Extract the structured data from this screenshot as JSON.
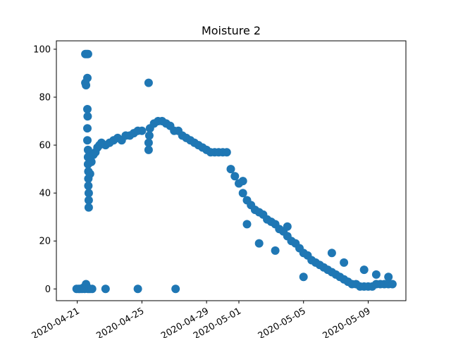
{
  "chart_data": {
    "type": "scatter",
    "title": "Moisture 2",
    "xlabel": "",
    "ylabel": "",
    "x_axis_kind": "date",
    "xlim": [
      "2020-04-19T17:00",
      "2020-05-11T08:00"
    ],
    "ylim": [
      -4.9,
      103.5
    ],
    "x_ticks": [
      "2020-04-21",
      "2020-04-25",
      "2020-04-29",
      "2020-05-01",
      "2020-05-05",
      "2020-05-09"
    ],
    "y_ticks": [
      0,
      20,
      40,
      60,
      80,
      100
    ],
    "x_tick_rotation_deg": 30,
    "grid": false,
    "legend": null,
    "marker_color": "#1f77b4",
    "series": [
      {
        "points": [
          [
            "2020-04-20T23:00",
            0
          ],
          [
            "2020-04-21T02:00",
            0
          ],
          [
            "2020-04-21T04:00",
            0
          ],
          [
            "2020-04-21T07:00",
            0
          ],
          [
            "2020-04-21T09:00",
            0.5
          ],
          [
            "2020-04-21T11:00",
            0
          ],
          [
            "2020-04-21T13:00",
            2
          ],
          [
            "2020-04-21T14:00",
            1
          ],
          [
            "2020-04-21T16:00",
            0
          ],
          [
            "2020-04-21T19:00",
            0
          ],
          [
            "2020-04-21T22:00",
            0
          ],
          [
            "2020-04-21T12:00",
            98
          ],
          [
            "2020-04-21T14:00",
            98
          ],
          [
            "2020-04-21T16:00",
            98
          ],
          [
            "2020-04-21T12:00",
            86
          ],
          [
            "2020-04-21T13:00",
            85
          ],
          [
            "2020-04-21T15:00",
            88
          ],
          [
            "2020-04-21T15:00",
            75
          ],
          [
            "2020-04-21T15:30",
            72
          ],
          [
            "2020-04-21T15:00",
            67
          ],
          [
            "2020-04-21T15:00",
            62
          ],
          [
            "2020-04-21T16:00",
            58
          ],
          [
            "2020-04-21T16:00",
            55
          ],
          [
            "2020-04-21T16:00",
            52
          ],
          [
            "2020-04-21T16:30",
            49
          ],
          [
            "2020-04-21T16:30",
            46
          ],
          [
            "2020-04-21T16:30",
            43
          ],
          [
            "2020-04-21T17:00",
            40
          ],
          [
            "2020-04-21T17:00",
            37
          ],
          [
            "2020-04-21T17:00",
            34
          ],
          [
            "2020-04-21T19:00",
            48
          ],
          [
            "2020-04-21T21:00",
            53
          ],
          [
            "2020-04-22T00:00",
            56
          ],
          [
            "2020-04-22T03:00",
            57
          ],
          [
            "2020-04-22T06:00",
            59
          ],
          [
            "2020-04-22T09:00",
            60
          ],
          [
            "2020-04-22T12:00",
            61
          ],
          [
            "2020-04-22T18:00",
            60
          ],
          [
            "2020-04-23T00:00",
            61
          ],
          [
            "2020-04-23T06:00",
            62
          ],
          [
            "2020-04-23T12:00",
            63
          ],
          [
            "2020-04-23T18:00",
            62
          ],
          [
            "2020-04-24T00:00",
            64
          ],
          [
            "2020-04-24T06:00",
            64
          ],
          [
            "2020-04-24T12:00",
            65
          ],
          [
            "2020-04-24T18:00",
            66
          ],
          [
            "2020-04-25T00:00",
            66
          ],
          [
            "2020-04-22T18:00",
            0
          ],
          [
            "2020-04-24T18:00",
            0
          ],
          [
            "2020-04-25T10:00",
            86
          ],
          [
            "2020-04-25T10:00",
            58
          ],
          [
            "2020-04-25T10:00",
            61
          ],
          [
            "2020-04-25T11:00",
            64
          ],
          [
            "2020-04-25T12:00",
            67
          ],
          [
            "2020-04-25T18:00",
            69
          ],
          [
            "2020-04-26T00:00",
            70
          ],
          [
            "2020-04-26T06:00",
            70
          ],
          [
            "2020-04-26T12:00",
            69
          ],
          [
            "2020-04-26T18:00",
            68
          ],
          [
            "2020-04-27T00:00",
            66
          ],
          [
            "2020-04-27T02:00",
            0
          ],
          [
            "2020-04-27T06:00",
            66
          ],
          [
            "2020-04-27T12:00",
            64
          ],
          [
            "2020-04-27T18:00",
            63
          ],
          [
            "2020-04-28T00:00",
            62
          ],
          [
            "2020-04-28T06:00",
            61
          ],
          [
            "2020-04-28T12:00",
            60
          ],
          [
            "2020-04-28T18:00",
            59
          ],
          [
            "2020-04-29T00:00",
            58
          ],
          [
            "2020-04-29T06:00",
            57
          ],
          [
            "2020-04-29T12:00",
            57
          ],
          [
            "2020-04-29T18:00",
            57
          ],
          [
            "2020-04-30T00:00",
            57
          ],
          [
            "2020-04-30T06:00",
            57
          ],
          [
            "2020-04-30T12:00",
            50
          ],
          [
            "2020-04-30T18:00",
            47
          ],
          [
            "2020-05-01T00:00",
            44
          ],
          [
            "2020-05-01T06:00",
            40
          ],
          [
            "2020-05-01T12:00",
            37
          ],
          [
            "2020-05-01T18:00",
            35
          ],
          [
            "2020-05-02T00:00",
            33
          ],
          [
            "2020-05-02T06:00",
            32
          ],
          [
            "2020-05-02T12:00",
            31
          ],
          [
            "2020-05-02T18:00",
            29
          ],
          [
            "2020-05-03T00:00",
            28
          ],
          [
            "2020-05-03T06:00",
            27
          ],
          [
            "2020-05-03T12:00",
            25
          ],
          [
            "2020-05-03T18:00",
            24
          ],
          [
            "2020-05-04T00:00",
            22
          ],
          [
            "2020-05-04T06:00",
            20
          ],
          [
            "2020-05-04T12:00",
            19
          ],
          [
            "2020-05-04T18:00",
            17
          ],
          [
            "2020-05-05T00:00",
            15
          ],
          [
            "2020-05-05T06:00",
            14
          ],
          [
            "2020-05-05T12:00",
            12
          ],
          [
            "2020-05-05T18:00",
            11
          ],
          [
            "2020-05-06T00:00",
            10
          ],
          [
            "2020-05-06T06:00",
            9
          ],
          [
            "2020-05-06T12:00",
            8
          ],
          [
            "2020-05-06T18:00",
            7
          ],
          [
            "2020-05-07T00:00",
            6
          ],
          [
            "2020-05-07T06:00",
            5
          ],
          [
            "2020-05-07T12:00",
            4
          ],
          [
            "2020-05-07T18:00",
            3
          ],
          [
            "2020-05-08T00:00",
            2
          ],
          [
            "2020-05-08T06:00",
            2
          ],
          [
            "2020-05-08T12:00",
            1
          ],
          [
            "2020-05-08T18:00",
            1
          ],
          [
            "2020-05-09T00:00",
            1
          ],
          [
            "2020-05-09T06:00",
            1
          ],
          [
            "2020-05-09T12:00",
            2
          ],
          [
            "2020-05-09T18:00",
            2
          ],
          [
            "2020-05-10T00:00",
            2
          ],
          [
            "2020-05-10T06:00",
            2
          ],
          [
            "2020-05-10T12:00",
            2
          ],
          [
            "2020-05-01T06:00",
            45
          ],
          [
            "2020-05-01T12:00",
            27
          ],
          [
            "2020-05-02T06:00",
            19
          ],
          [
            "2020-05-03T06:00",
            16
          ],
          [
            "2020-05-04T00:00",
            26
          ],
          [
            "2020-05-05T00:00",
            5
          ],
          [
            "2020-05-06T18:00",
            15
          ],
          [
            "2020-05-07T12:00",
            11
          ],
          [
            "2020-05-08T18:00",
            8
          ],
          [
            "2020-05-09T12:00",
            6
          ],
          [
            "2020-05-10T06:00",
            5
          ]
        ]
      }
    ]
  }
}
